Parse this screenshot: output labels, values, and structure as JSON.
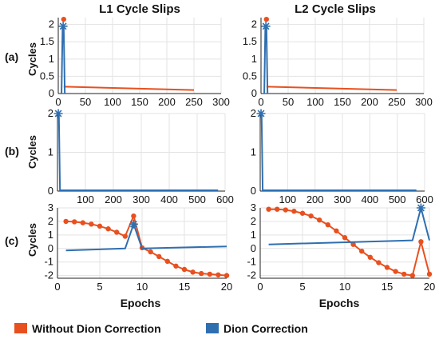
{
  "titles": {
    "left": "L1 Cycle Slips",
    "right": "L2 Cycle Slips"
  },
  "row_labels": [
    "(a)",
    "(b)",
    "(c)"
  ],
  "ylabel": "Cycles",
  "xlabel": "Epochs",
  "legend": {
    "without": {
      "label": "Without Dion Correction",
      "color": "#e8501f"
    },
    "with": {
      "label": "Dion Correction",
      "color": "#2f6fb0"
    }
  },
  "chart_data": [
    {
      "type": "line",
      "id": "a-L1",
      "xlim": [
        0,
        300
      ],
      "ylim": [
        0,
        2.2
      ],
      "xticks": [
        0,
        50,
        100,
        150,
        200,
        250,
        300
      ],
      "yticks": [
        0,
        0.5,
        1,
        1.5,
        2
      ],
      "ytick_labels": [
        "0",
        "0.5",
        "1",
        "1.5",
        "2"
      ],
      "series": [
        {
          "key": "without",
          "x": [
            10,
            250
          ],
          "y": [
            0.2,
            0.1
          ],
          "marker": "none"
        },
        {
          "key": "without",
          "x": [
            10
          ],
          "y": [
            2.15
          ],
          "marker": "circle"
        },
        {
          "key": "with",
          "x": [
            6,
            8,
            10,
            12
          ],
          "y": [
            0,
            1.95,
            1.95,
            0
          ],
          "marker": "none"
        },
        {
          "key": "with",
          "x": [
            9
          ],
          "y": [
            1.95
          ],
          "marker": "star"
        }
      ]
    },
    {
      "type": "line",
      "id": "a-L2",
      "xlim": [
        0,
        300
      ],
      "ylim": [
        0,
        2.2
      ],
      "xticks": [
        0,
        50,
        100,
        150,
        200,
        250,
        300
      ],
      "yticks": [
        0,
        0.5,
        1,
        1.5,
        2
      ],
      "ytick_labels": [
        "0",
        "0.5",
        "1",
        "1.5",
        "2"
      ],
      "series": [
        {
          "key": "without",
          "x": [
            10,
            250
          ],
          "y": [
            0.2,
            0.1
          ],
          "marker": "none"
        },
        {
          "key": "without",
          "x": [
            10
          ],
          "y": [
            2.15
          ],
          "marker": "circle"
        },
        {
          "key": "with",
          "x": [
            6,
            8,
            10,
            12
          ],
          "y": [
            0,
            1.95,
            1.95,
            0
          ],
          "marker": "none"
        },
        {
          "key": "with",
          "x": [
            9
          ],
          "y": [
            1.95
          ],
          "marker": "star"
        }
      ]
    },
    {
      "type": "line",
      "id": "b-L1",
      "xlim": [
        0,
        600
      ],
      "ylim": [
        0,
        2
      ],
      "xticks": [
        100,
        200,
        300,
        400,
        500,
        600
      ],
      "yticks": [
        0,
        1,
        2
      ],
      "ytick_labels": [
        "0",
        "1",
        "2"
      ],
      "series": [
        {
          "key": "with",
          "x": [
            0,
            5,
            9,
            575
          ],
          "y": [
            2,
            2,
            0.02,
            0.02
          ],
          "marker": "none"
        },
        {
          "key": "with",
          "x": [
            3
          ],
          "y": [
            2
          ],
          "marker": "star"
        }
      ]
    },
    {
      "type": "line",
      "id": "b-L2",
      "xlim": [
        0,
        600
      ],
      "ylim": [
        0,
        2
      ],
      "xticks": [
        100,
        200,
        300,
        400,
        500,
        600
      ],
      "yticks": [
        0,
        1,
        2
      ],
      "ytick_labels": [
        "0",
        "1",
        "2"
      ],
      "series": [
        {
          "key": "with",
          "x": [
            0,
            5,
            9,
            570
          ],
          "y": [
            2,
            2,
            0.02,
            0.02
          ],
          "marker": "none"
        },
        {
          "key": "with",
          "x": [
            3
          ],
          "y": [
            2
          ],
          "marker": "star"
        }
      ]
    },
    {
      "type": "line",
      "id": "c-L1",
      "xlim": [
        0,
        20
      ],
      "ylim": [
        -2.2,
        3
      ],
      "xticks": [
        0,
        5,
        10,
        15,
        20
      ],
      "yticks": [
        -2,
        -1,
        0,
        1,
        2,
        3
      ],
      "ytick_labels": [
        "-2",
        "-1",
        "0",
        "1",
        "2",
        "3"
      ],
      "series": [
        {
          "key": "without",
          "x": [
            1,
            2,
            3,
            4,
            5,
            6,
            7,
            8,
            9,
            10,
            11,
            12,
            13,
            14,
            15,
            16,
            17,
            18,
            19,
            20
          ],
          "y": [
            2.0,
            1.97,
            1.9,
            1.8,
            1.65,
            1.45,
            1.2,
            0.9,
            2.4,
            0.05,
            -0.25,
            -0.6,
            -0.95,
            -1.3,
            -1.55,
            -1.75,
            -1.85,
            -1.9,
            -1.95,
            -2.0
          ],
          "marker": "circle"
        },
        {
          "key": "with",
          "x": [
            1,
            8,
            9,
            10,
            20
          ],
          "y": [
            -0.15,
            0,
            1.8,
            0,
            0.15
          ],
          "marker": "none"
        },
        {
          "key": "with",
          "x": [
            9
          ],
          "y": [
            1.8
          ],
          "marker": "star"
        }
      ]
    },
    {
      "type": "line",
      "id": "c-L2",
      "xlim": [
        0,
        20
      ],
      "ylim": [
        -2.2,
        3
      ],
      "xticks": [
        0,
        5,
        10,
        15,
        20
      ],
      "yticks": [
        -2,
        -1,
        0,
        1,
        2,
        3
      ],
      "ytick_labels": [
        "-2",
        "-1",
        "0",
        "1",
        "2",
        "3"
      ],
      "series": [
        {
          "key": "without",
          "x": [
            1,
            2,
            3,
            4,
            5,
            6,
            7,
            8,
            9,
            10,
            11,
            12,
            13,
            14,
            15,
            16,
            17,
            18,
            19,
            20
          ],
          "y": [
            2.9,
            2.9,
            2.85,
            2.75,
            2.6,
            2.4,
            2.1,
            1.75,
            1.3,
            0.8,
            0.3,
            -0.2,
            -0.65,
            -1.05,
            -1.4,
            -1.7,
            -1.9,
            -2.0,
            0.5,
            -1.9
          ],
          "marker": "circle"
        },
        {
          "key": "with",
          "x": [
            1,
            18,
            19,
            20
          ],
          "y": [
            0.3,
            0.6,
            3.0,
            0.6
          ],
          "marker": "none"
        },
        {
          "key": "with",
          "x": [
            19
          ],
          "y": [
            3.0
          ],
          "marker": "star"
        }
      ]
    }
  ]
}
